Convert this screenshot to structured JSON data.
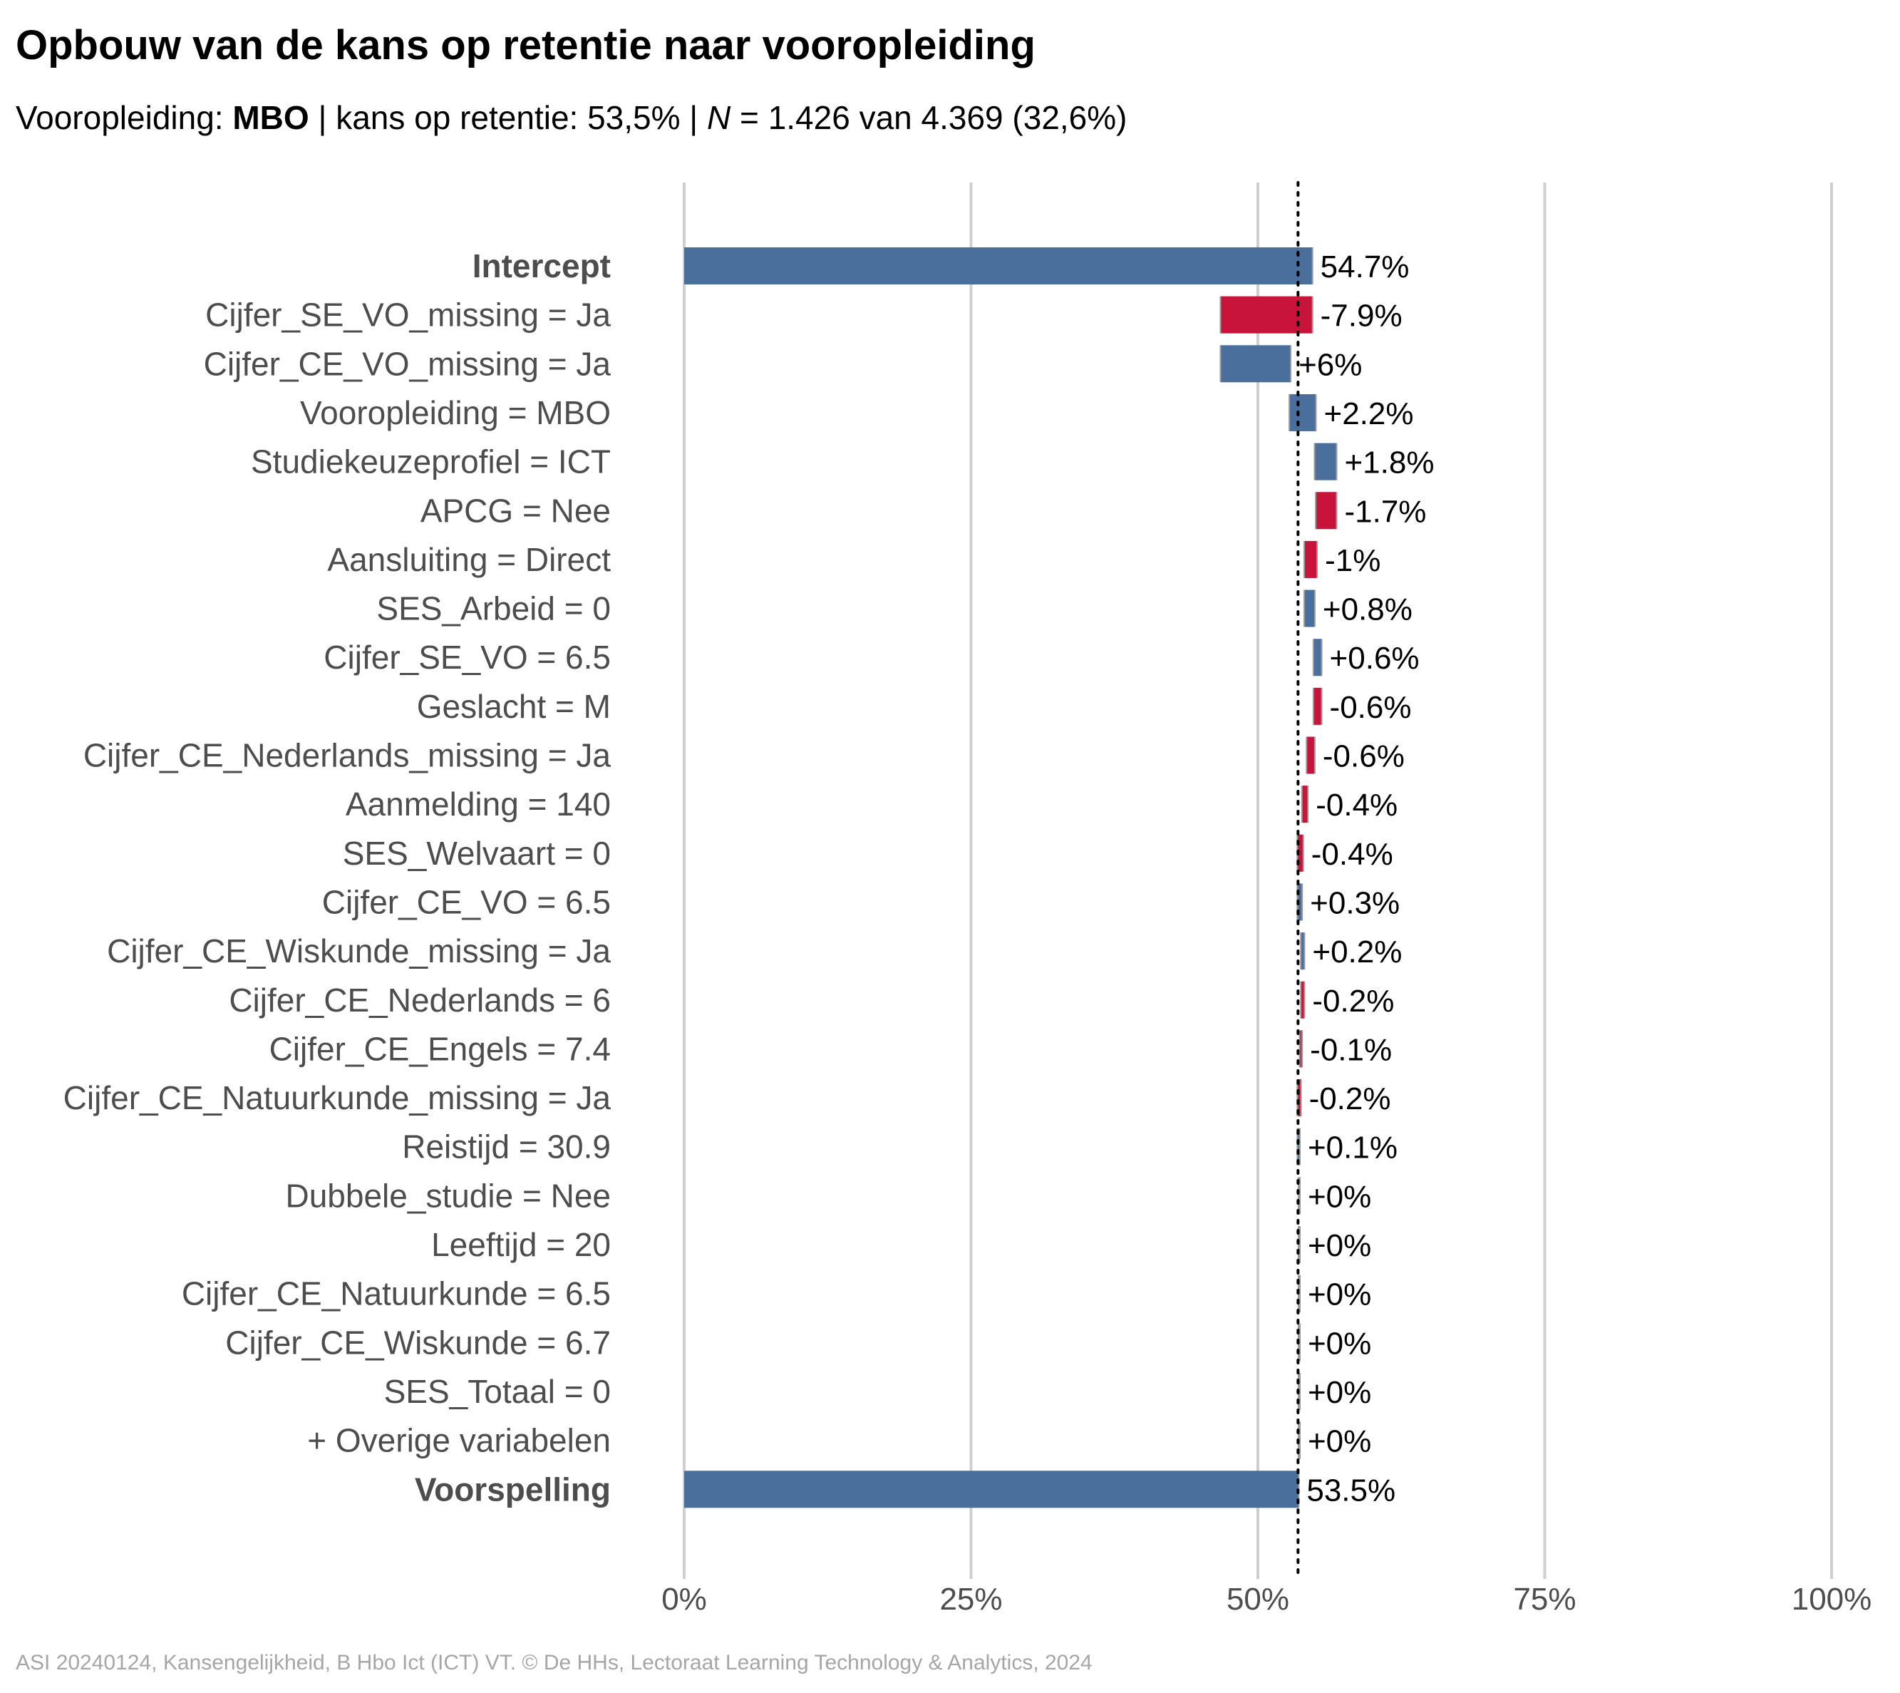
{
  "header": {
    "title": "Opbouw van de kans op retentie naar vooropleiding",
    "subtitle": {
      "prefix": "Vooropleiding: ",
      "group": "MBO",
      "middle": " | kans op retentie: 53,5% | ",
      "n_symbol": "N",
      "suffix": " = 1.426 van 4.369 (32,6%)"
    }
  },
  "caption": "ASI 20240124, Kansengelijkheid, B Hbo Ict (ICT) VT. © De HHs, Lectoraat Learning Technology & Analytics, 2024",
  "colors": {
    "positive": "#4a6f9c",
    "negative": "#c8143a",
    "grid": "#cfcfcf",
    "connector": "#9c9c9c",
    "reference_line": "#000000"
  },
  "chart_data": {
    "type": "waterfall",
    "x_range": [
      0,
      100
    ],
    "x_ticks": [
      0,
      25,
      50,
      75,
      100
    ],
    "x_tick_labels": [
      "0%",
      "25%",
      "50%",
      "75%",
      "100%"
    ],
    "reference_value": 53.5,
    "reference_style": "dotted",
    "grid": true,
    "rows": [
      {
        "label": "Intercept",
        "kind": "total",
        "value": 54.7,
        "value_label": "54.7%",
        "bold": true
      },
      {
        "label": "Cijfer_SE_VO_missing = Ja",
        "kind": "delta",
        "value": -7.9,
        "value_label": "-7.9%"
      },
      {
        "label": "Cijfer_CE_VO_missing = Ja",
        "kind": "delta",
        "value": 6.0,
        "value_label": "+6%"
      },
      {
        "label": "Vooropleiding = MBO",
        "kind": "delta",
        "value": 2.2,
        "value_label": "+2.2%"
      },
      {
        "label": "Studiekeuzeprofiel = ICT",
        "kind": "delta",
        "value": 1.8,
        "value_label": "+1.8%"
      },
      {
        "label": "APCG = Nee",
        "kind": "delta",
        "value": -1.7,
        "value_label": "-1.7%"
      },
      {
        "label": "Aansluiting = Direct",
        "kind": "delta",
        "value": -1.0,
        "value_label": "-1%"
      },
      {
        "label": "SES_Arbeid = 0",
        "kind": "delta",
        "value": 0.8,
        "value_label": "+0.8%"
      },
      {
        "label": "Cijfer_SE_VO = 6.5",
        "kind": "delta",
        "value": 0.6,
        "value_label": "+0.6%"
      },
      {
        "label": "Geslacht = M",
        "kind": "delta",
        "value": -0.6,
        "value_label": "-0.6%"
      },
      {
        "label": "Cijfer_CE_Nederlands_missing = Ja",
        "kind": "delta",
        "value": -0.6,
        "value_label": "-0.6%"
      },
      {
        "label": "Aanmelding = 140",
        "kind": "delta",
        "value": -0.4,
        "value_label": "-0.4%"
      },
      {
        "label": "SES_Welvaart = 0",
        "kind": "delta",
        "value": -0.4,
        "value_label": "-0.4%"
      },
      {
        "label": "Cijfer_CE_VO = 6.5",
        "kind": "delta",
        "value": 0.3,
        "value_label": "+0.3%"
      },
      {
        "label": "Cijfer_CE_Wiskunde_missing = Ja",
        "kind": "delta",
        "value": 0.2,
        "value_label": "+0.2%"
      },
      {
        "label": "Cijfer_CE_Nederlands = 6",
        "kind": "delta",
        "value": -0.2,
        "value_label": "-0.2%"
      },
      {
        "label": "Cijfer_CE_Engels = 7.4",
        "kind": "delta",
        "value": -0.1,
        "value_label": "-0.1%"
      },
      {
        "label": "Cijfer_CE_Natuurkunde_missing = Ja",
        "kind": "delta",
        "value": -0.2,
        "value_label": "-0.2%"
      },
      {
        "label": "Reistijd = 30.9",
        "kind": "delta",
        "value": 0.1,
        "value_label": "+0.1%"
      },
      {
        "label": "Dubbele_studie = Nee",
        "kind": "delta",
        "value": 0.0,
        "value_label": "+0%"
      },
      {
        "label": "Leeftijd = 20",
        "kind": "delta",
        "value": 0.0,
        "value_label": "+0%"
      },
      {
        "label": "Cijfer_CE_Natuurkunde = 6.5",
        "kind": "delta",
        "value": 0.0,
        "value_label": "+0%"
      },
      {
        "label": "Cijfer_CE_Wiskunde = 6.7",
        "kind": "delta",
        "value": 0.0,
        "value_label": "+0%"
      },
      {
        "label": "SES_Totaal = 0",
        "kind": "delta",
        "value": 0.0,
        "value_label": "+0%"
      },
      {
        "label": "+ Overige variabelen",
        "kind": "delta",
        "value": 0.0,
        "value_label": "+0%"
      },
      {
        "label": "Voorspelling",
        "kind": "total",
        "value": 53.5,
        "value_label": "53.5%",
        "bold": true
      }
    ]
  }
}
